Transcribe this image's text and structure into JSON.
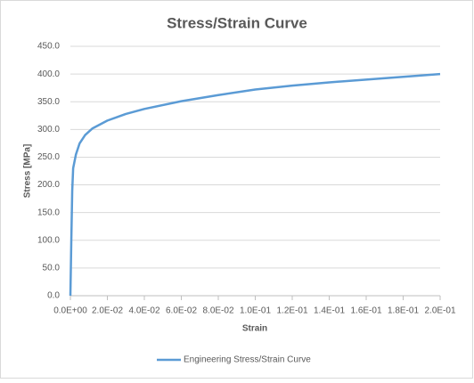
{
  "chart_data": {
    "type": "line",
    "title": "Stress/Strain Curve",
    "x_label": "Strain",
    "y_label": "Stress [MPa]",
    "x": [
      0,
      0.0005,
      0.001,
      0.0015,
      0.003,
      0.005,
      0.008,
      0.012,
      0.02,
      0.03,
      0.04,
      0.06,
      0.08,
      0.1,
      0.12,
      0.14,
      0.16,
      0.18,
      0.2
    ],
    "series": [
      {
        "name": "Engineering Stress/Strain Curve",
        "color": "#5b9bd5",
        "values": [
          0,
          100,
          190,
          230,
          255,
          275,
          290,
          302,
          316,
          328,
          337,
          351,
          362,
          372,
          379,
          385,
          390,
          395,
          400
        ]
      }
    ],
    "xlim": [
      0,
      0.2
    ],
    "ylim": [
      0,
      450
    ],
    "xticks": [
      {
        "value": 0,
        "label": "0.0E+00"
      },
      {
        "value": 0.02,
        "label": "2.0E-02"
      },
      {
        "value": 0.04,
        "label": "4.0E-02"
      },
      {
        "value": 0.06,
        "label": "6.0E-02"
      },
      {
        "value": 0.08,
        "label": "8.0E-02"
      },
      {
        "value": 0.1,
        "label": "1.0E-01"
      },
      {
        "value": 0.12,
        "label": "1.2E-01"
      },
      {
        "value": 0.14,
        "label": "1.4E-01"
      },
      {
        "value": 0.16,
        "label": "1.6E-01"
      },
      {
        "value": 0.18,
        "label": "1.8E-01"
      },
      {
        "value": 0.2,
        "label": "2.0E-01"
      }
    ],
    "yticks": [
      {
        "value": 0,
        "label": "0.0"
      },
      {
        "value": 50,
        "label": "50.0"
      },
      {
        "value": 100,
        "label": "100.0"
      },
      {
        "value": 150,
        "label": "150.0"
      },
      {
        "value": 200,
        "label": "200.0"
      },
      {
        "value": 250,
        "label": "250.0"
      },
      {
        "value": 300,
        "label": "300.0"
      },
      {
        "value": 350,
        "label": "350.0"
      },
      {
        "value": 400,
        "label": "400.0"
      },
      {
        "value": 450,
        "label": "450.0"
      }
    ],
    "grid": true,
    "legend": "bottom"
  }
}
